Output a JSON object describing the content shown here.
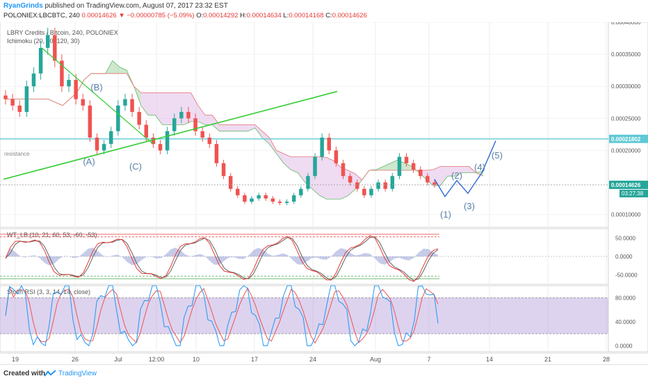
{
  "header": {
    "author": "RyanGrinds",
    "published_text": "published on TradingView.com, August 07, 2017 23:32 EST",
    "symbol": "POLONIEX:LBCBTC, 240",
    "last": "0.00014626",
    "change": "▼ −0.00000785 (−5.09%)",
    "ohlc": [
      {
        "label": "O:",
        "value": "0.00014292"
      },
      {
        "label": "H:",
        "value": "0.00014634"
      },
      {
        "label": "L:",
        "value": "0.00014168"
      },
      {
        "label": "C:",
        "value": "0.00014626"
      }
    ]
  },
  "footer": {
    "created_with": "Created with",
    "brand": "TradingView"
  },
  "colors": {
    "up": "#26a69a",
    "down": "#ef5350",
    "cloud_bull": "#a5d6a7",
    "cloud_bear": "#e1bee7",
    "trendline": "#33cc33",
    "projection": "#2e6ad6",
    "hline": "#5fc9d6",
    "wt_fast": "#e53935",
    "wt_slow": "#616161",
    "stoch_k": "#2196f3",
    "stoch_d": "#ef5350",
    "stoch_band": "#b39ddb"
  },
  "chart_data": [
    {
      "type": "candlestick",
      "title": "LBRY Credits / Bitcoin, 240, POLONIEX",
      "indicator_label": "Ichimoku (20, 60, 120, 30)",
      "x_ticks": [
        "19",
        "26",
        "Jul",
        "12:00",
        "10",
        "17",
        "24",
        "Aug",
        "7",
        "14",
        "21",
        "28"
      ],
      "y_ticks": [
        "0.00040000",
        "0.00035000",
        "0.00030000",
        "0.00025000",
        "0.00020000",
        "0.00010000"
      ],
      "ylim": [
        8e-05,
        0.0004
      ],
      "price_label": "0.00014626",
      "countdown_label": "03:27:38",
      "hline_label": "0.00021802",
      "hline_value": 0.00021802,
      "annotations": [
        "(A)",
        "(B)",
        "(C)",
        "(1)",
        "(2)",
        "(3)",
        "(4)",
        "(5)",
        "resistance"
      ],
      "close_series": [
        0.00028,
        0.00027,
        0.00026,
        0.0003,
        0.00032,
        0.00036,
        0.00038,
        0.00034,
        0.0003,
        0.00031,
        0.00028,
        0.00027,
        0.00022,
        0.0002,
        0.00021,
        0.00023,
        0.00027,
        0.00028,
        0.00026,
        0.00024,
        0.00022,
        0.00021,
        0.0002,
        0.00023,
        0.00025,
        0.00026,
        0.00025,
        0.00023,
        0.00022,
        0.00021,
        0.00018,
        0.00016,
        0.00014,
        0.00013,
        0.00012,
        0.000125,
        0.00013,
        0.000125,
        0.00012,
        0.000118,
        0.00012,
        0.00013,
        0.00014,
        0.00016,
        0.00019,
        0.00022,
        0.0002,
        0.00018,
        0.00016,
        0.00015,
        0.00014,
        0.00013,
        0.00014,
        0.00015,
        0.00014,
        0.00016,
        0.00019,
        0.00018,
        0.00017,
        0.00016,
        0.00015,
        0.00014626
      ],
      "projection_wave": [
        0.000155,
        0.000128,
        0.000153,
        0.000133,
        0.000165,
        0.000215
      ],
      "trendline_1": [
        [
          0.000155,
          0
        ],
        [
          0.000292,
          1
        ]
      ],
      "trendline_2": [
        [
          0.00036,
          0
        ],
        [
          0.00021,
          1
        ]
      ]
    },
    {
      "type": "line",
      "title": "WT_LB (10, 21, 60, 53, -60, -53)",
      "y_ticks": [
        "50.0000",
        "0.0000",
        "-50.0000"
      ],
      "ylim": [
        -75,
        75
      ],
      "levels": [
        60,
        53,
        -53,
        -60
      ]
    },
    {
      "type": "line",
      "title": "Stoch RSI (3, 3, 14, 14, close)",
      "y_ticks": [
        "80.0000",
        "40.0000",
        "0.0000"
      ],
      "ylim": [
        -10,
        100
      ],
      "levels": [
        80,
        20
      ]
    }
  ]
}
